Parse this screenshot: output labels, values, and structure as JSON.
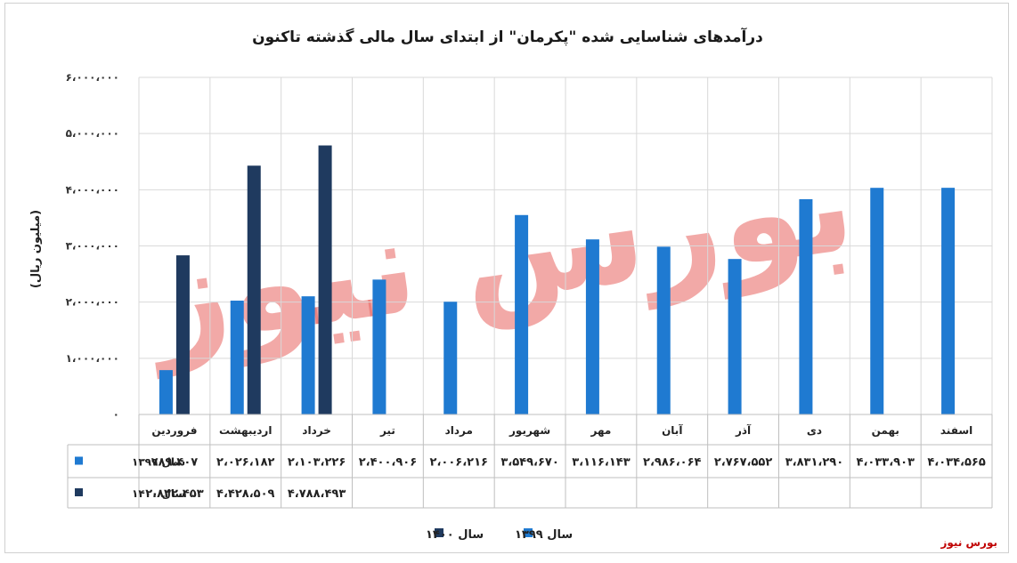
{
  "brand_text": "بورس نیوز",
  "watermark_text": "بورس نیوز",
  "colors": {
    "series1": "#1f7ad1",
    "series2": "#1f3a5f",
    "grid": "#d9d9d9",
    "watermark": "#e8635f"
  },
  "chart_data": {
    "type": "bar",
    "title": "درآمدهای شناسایی شده \"پکرمان\" از ابتدای سال مالی گذشته تاکنون",
    "ylabel": "(میلیون ریال)",
    "xlabel": "",
    "ylim": [
      0,
      6000000
    ],
    "ytick_values": [
      0,
      1000000,
      2000000,
      3000000,
      4000000,
      5000000,
      6000000
    ],
    "ytick_labels": [
      "۰",
      "۱،۰۰۰،۰۰۰",
      "۲،۰۰۰،۰۰۰",
      "۳،۰۰۰،۰۰۰",
      "۴،۰۰۰،۰۰۰",
      "۵،۰۰۰،۰۰۰",
      "۶،۰۰۰،۰۰۰"
    ],
    "grid": true,
    "legend_position": "bottom",
    "categories": [
      "فروردین",
      "اردیبهشت",
      "خرداد",
      "تیر",
      "مرداد",
      "شهریور",
      "مهر",
      "آبان",
      "آذر",
      "دی",
      "بهمن",
      "اسفند"
    ],
    "series": [
      {
        "name": "سال ۱۳۹۹",
        "values": [
          789407,
          2026182,
          2103226,
          2400906,
          2006216,
          3549670,
          3116143,
          2986064,
          2767552,
          3831290,
          4033903,
          4034565
        ],
        "labels": [
          "۷۸۹،۴۰۷",
          "۲،۰۲۶،۱۸۲",
          "۲،۱۰۳،۲۲۶",
          "۲،۴۰۰،۹۰۶",
          "۲،۰۰۶،۲۱۶",
          "۳،۵۴۹،۶۷۰",
          "۳،۱۱۶،۱۴۳",
          "۲،۹۸۶،۰۶۴",
          "۲،۷۶۷،۵۵۲",
          "۳،۸۳۱،۲۹۰",
          "۴،۰۳۳،۹۰۳",
          "۴،۰۳۴،۵۶۵"
        ]
      },
      {
        "name": "سال ۱۴۰۰",
        "values": [
          2832453,
          4428509,
          4788493,
          null,
          null,
          null,
          null,
          null,
          null,
          null,
          null,
          null
        ],
        "labels": [
          "۲،۸۳۲،۴۵۳",
          "۴،۴۲۸،۵۰۹",
          "۴،۷۸۸،۴۹۳",
          "",
          "",
          "",
          "",
          "",
          "",
          "",
          "",
          ""
        ]
      }
    ]
  }
}
